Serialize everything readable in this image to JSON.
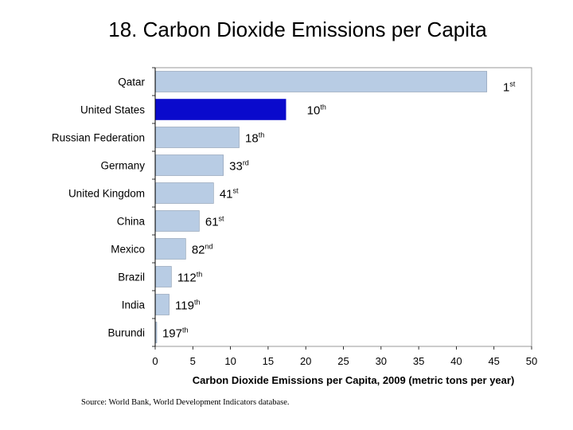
{
  "page": {
    "title": "18. Carbon Dioxide Emissions per Capita",
    "source": "Source: World Bank, World Development Indicators database."
  },
  "colors": {
    "bar_default": "#b8cce4",
    "bar_highlight": "#0a0acc",
    "bar_stroke": "#8a9bb0",
    "axis": "#000000"
  },
  "chart_data": {
    "type": "bar",
    "orientation": "horizontal",
    "title": "18. Carbon Dioxide Emissions per Capita",
    "xlabel": "Carbon Dioxide Emissions per Capita, 2009 (metric tons per year)",
    "ylabel": "",
    "xlim": [
      0,
      50
    ],
    "xticks": [
      0,
      5,
      10,
      15,
      20,
      25,
      30,
      35,
      40,
      45,
      50
    ],
    "grid": false,
    "highlight": "United States",
    "categories": [
      "Qatar",
      "United States",
      "Russian Federation",
      "Germany",
      "United Kingdom",
      "China",
      "Mexico",
      "Brazil",
      "India",
      "Burundi"
    ],
    "values": [
      44,
      17.3,
      11.1,
      9.0,
      7.7,
      5.8,
      4.0,
      2.1,
      1.8,
      0.1
    ],
    "ranks": [
      {
        "num": "1",
        "suffix": "st"
      },
      {
        "num": "10",
        "suffix": "th"
      },
      {
        "num": "18",
        "suffix": "th"
      },
      {
        "num": "33",
        "suffix": "rd"
      },
      {
        "num": "41",
        "suffix": "st"
      },
      {
        "num": "61",
        "suffix": "st"
      },
      {
        "num": "82",
        "suffix": "nd"
      },
      {
        "num": "112",
        "suffix": "th"
      },
      {
        "num": "119",
        "suffix": "th"
      },
      {
        "num": "197",
        "suffix": "th"
      }
    ]
  }
}
